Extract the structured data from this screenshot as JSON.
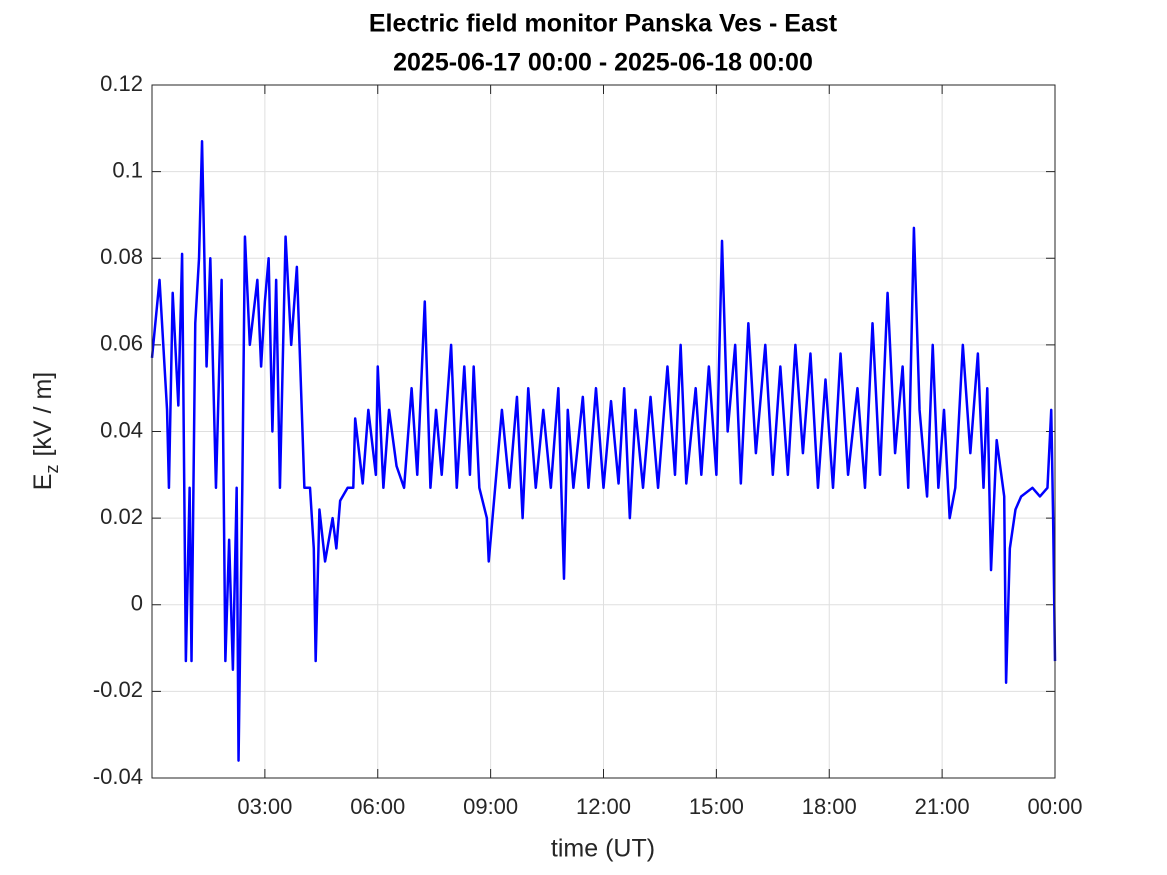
{
  "chart_data": {
    "type": "line",
    "title": "Electric field monitor Panska Ves - East",
    "subtitle": "2025-06-17 00:00 - 2025-06-18 00:00",
    "xlabel": "time (UT)",
    "ylabel": {
      "main": "E",
      "sub": "z",
      "unit": "[kV / m]"
    },
    "xlim": [
      0,
      24
    ],
    "xticks": [
      {
        "value": 3,
        "label": "03:00"
      },
      {
        "value": 6,
        "label": "06:00"
      },
      {
        "value": 9,
        "label": "09:00"
      },
      {
        "value": 12,
        "label": "12:00"
      },
      {
        "value": 15,
        "label": "15:00"
      },
      {
        "value": 18,
        "label": "18:00"
      },
      {
        "value": 21,
        "label": "21:00"
      },
      {
        "value": 24,
        "label": "00:00"
      }
    ],
    "ylim": [
      -0.04,
      0.12
    ],
    "yticks": [
      -0.04,
      -0.02,
      0,
      0.02,
      0.04,
      0.06,
      0.08,
      0.1,
      0.12
    ],
    "grid": true,
    "series": [
      {
        "color": "#0000ff",
        "x": [
          0,
          0.2,
          0.4,
          0.45,
          0.55,
          0.7,
          0.8,
          0.9,
          1.0,
          1.05,
          1.15,
          1.25,
          1.33,
          1.45,
          1.55,
          1.7,
          1.85,
          1.95,
          2.05,
          2.15,
          2.25,
          2.3,
          2.4,
          2.47,
          2.6,
          2.8,
          2.9,
          3.0,
          3.1,
          3.2,
          3.3,
          3.4,
          3.55,
          3.7,
          3.85,
          4.0,
          4.05,
          4.2,
          4.3,
          4.35,
          4.45,
          4.6,
          4.8,
          4.9,
          5.0,
          5.2,
          5.35,
          5.4,
          5.6,
          5.75,
          5.95,
          6.0,
          6.15,
          6.3,
          6.5,
          6.7,
          6.9,
          7.05,
          7.25,
          7.4,
          7.55,
          7.7,
          7.95,
          8.1,
          8.3,
          8.45,
          8.55,
          8.7,
          8.9,
          8.95,
          9.1,
          9.3,
          9.5,
          9.7,
          9.85,
          10.0,
          10.2,
          10.4,
          10.6,
          10.8,
          10.95,
          11.05,
          11.2,
          11.45,
          11.6,
          11.8,
          12.0,
          12.2,
          12.4,
          12.55,
          12.7,
          12.85,
          13.05,
          13.25,
          13.45,
          13.7,
          13.9,
          14.05,
          14.2,
          14.45,
          14.6,
          14.8,
          15.0,
          15.15,
          15.3,
          15.5,
          15.65,
          15.85,
          16.05,
          16.3,
          16.5,
          16.7,
          16.9,
          17.1,
          17.3,
          17.5,
          17.7,
          17.9,
          18.1,
          18.3,
          18.5,
          18.75,
          18.95,
          19.15,
          19.35,
          19.55,
          19.75,
          19.95,
          20.1,
          20.25,
          20.4,
          20.6,
          20.75,
          20.9,
          21.05,
          21.2,
          21.35,
          21.55,
          21.75,
          21.95,
          22.1,
          22.2,
          22.3,
          22.45,
          22.65,
          22.7,
          22.8,
          22.95,
          23.1,
          23.4,
          23.6,
          23.8,
          23.9,
          23.95,
          24.0
        ],
        "values": [
          0.057,
          0.075,
          0.045,
          0.027,
          0.072,
          0.046,
          0.081,
          -0.013,
          0.027,
          -0.013,
          0.065,
          0.08,
          0.107,
          0.055,
          0.08,
          0.027,
          0.075,
          -0.013,
          0.015,
          -0.015,
          0.027,
          -0.036,
          0.027,
          0.085,
          0.06,
          0.075,
          0.055,
          0.07,
          0.08,
          0.04,
          0.075,
          0.027,
          0.085,
          0.06,
          0.078,
          0.04,
          0.027,
          0.027,
          0.013,
          -0.013,
          0.022,
          0.01,
          0.02,
          0.013,
          0.024,
          0.027,
          0.027,
          0.043,
          0.028,
          0.045,
          0.03,
          0.055,
          0.027,
          0.045,
          0.032,
          0.027,
          0.05,
          0.03,
          0.07,
          0.027,
          0.045,
          0.03,
          0.06,
          0.027,
          0.055,
          0.03,
          0.055,
          0.027,
          0.02,
          0.01,
          0.025,
          0.045,
          0.027,
          0.048,
          0.02,
          0.05,
          0.027,
          0.045,
          0.027,
          0.05,
          0.006,
          0.045,
          0.027,
          0.048,
          0.027,
          0.05,
          0.027,
          0.047,
          0.028,
          0.05,
          0.02,
          0.045,
          0.027,
          0.048,
          0.027,
          0.055,
          0.03,
          0.06,
          0.028,
          0.05,
          0.03,
          0.055,
          0.03,
          0.084,
          0.04,
          0.06,
          0.028,
          0.065,
          0.035,
          0.06,
          0.03,
          0.055,
          0.03,
          0.06,
          0.035,
          0.058,
          0.027,
          0.052,
          0.027,
          0.058,
          0.03,
          0.05,
          0.027,
          0.065,
          0.03,
          0.072,
          0.035,
          0.055,
          0.027,
          0.087,
          0.045,
          0.025,
          0.06,
          0.027,
          0.045,
          0.02,
          0.027,
          0.06,
          0.035,
          0.058,
          0.027,
          0.05,
          0.008,
          0.038,
          0.025,
          -0.018,
          0.013,
          0.022,
          0.025,
          0.027,
          0.025,
          0.027,
          0.045,
          0.02,
          -0.013
        ]
      }
    ]
  }
}
